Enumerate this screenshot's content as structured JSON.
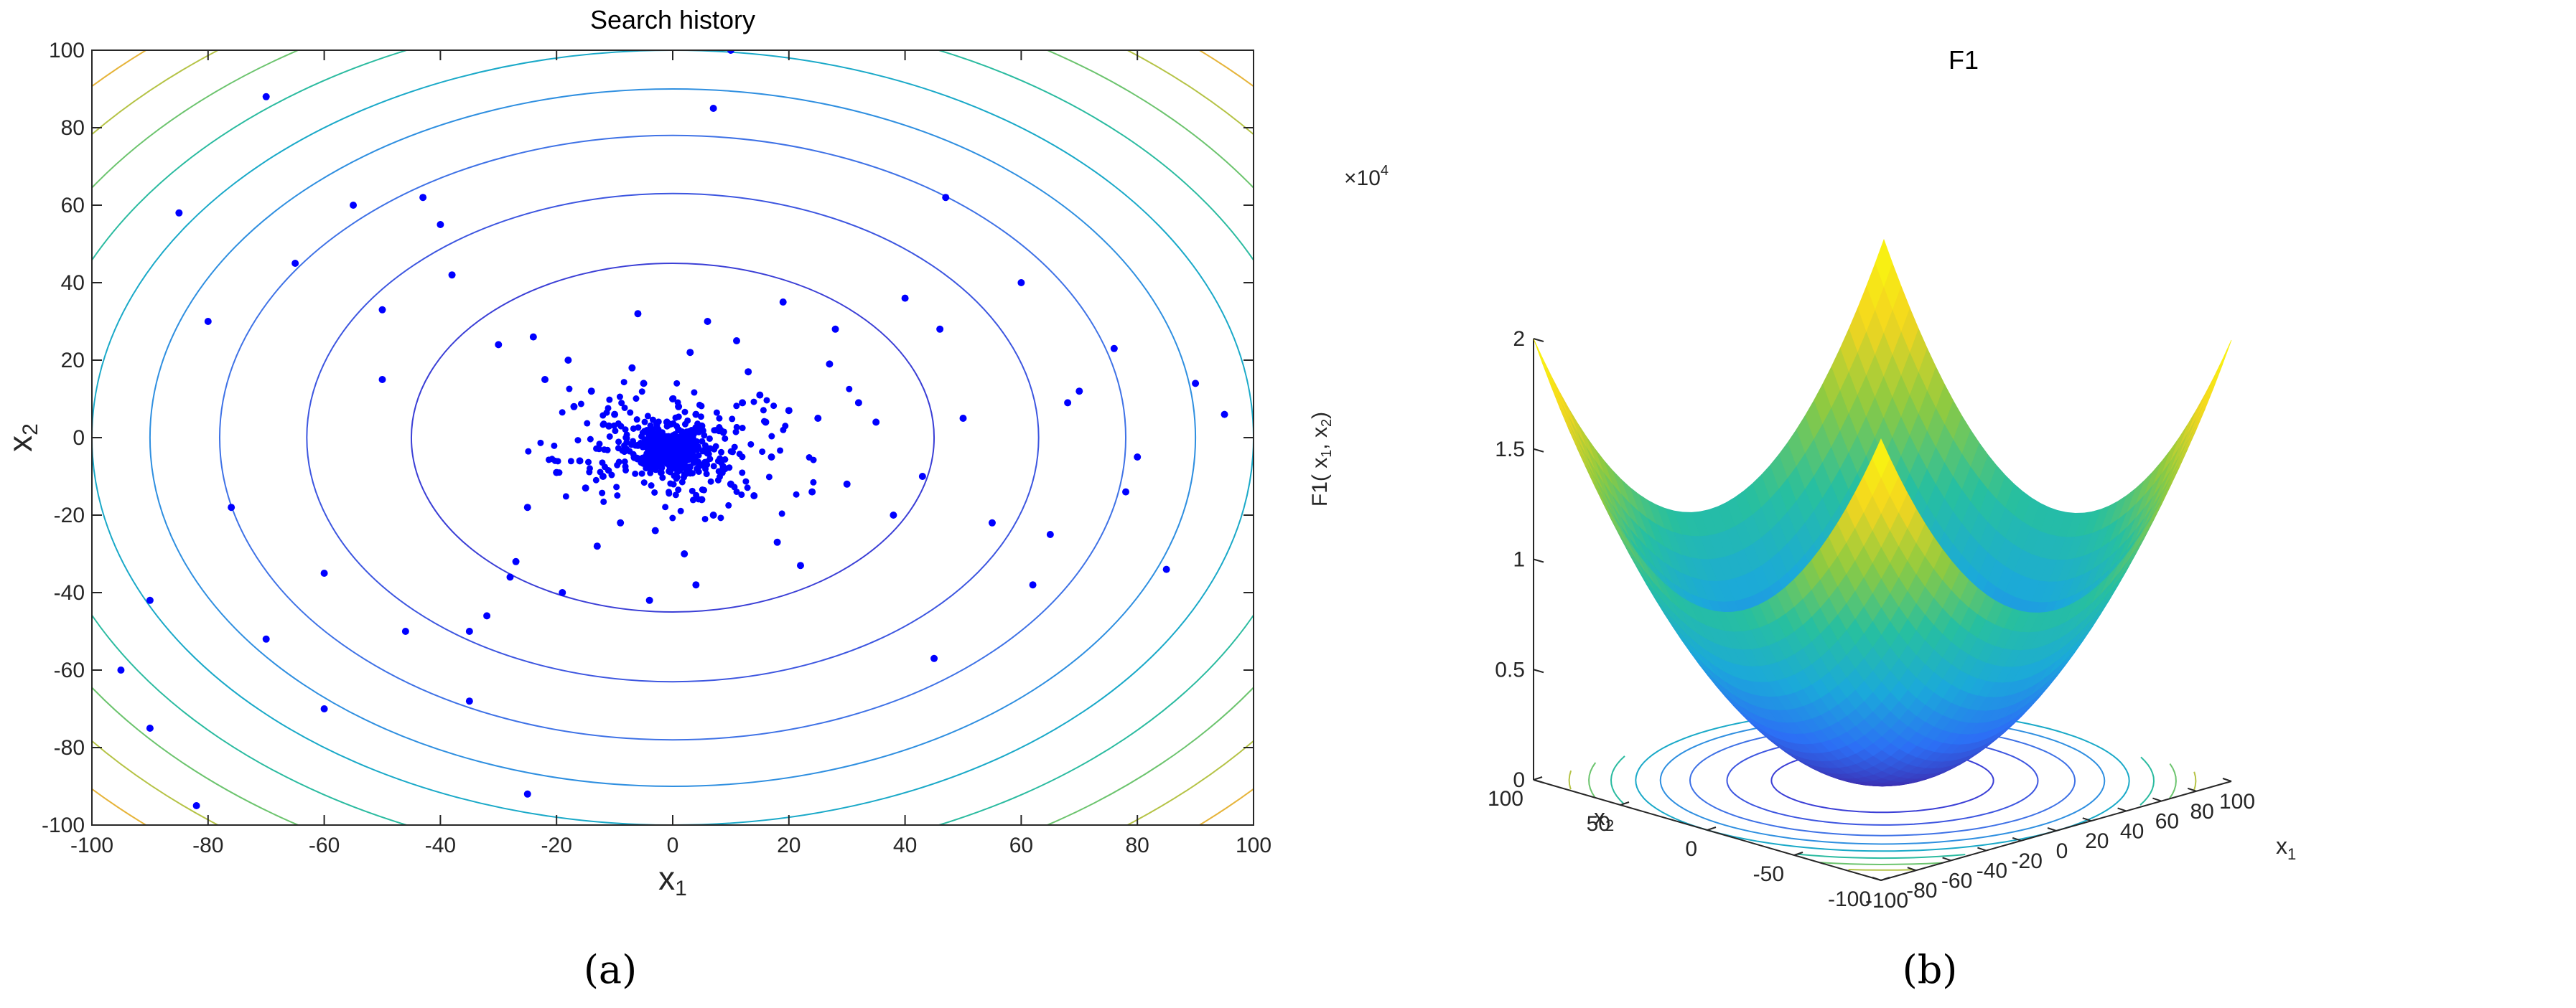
{
  "chart_data": [
    {
      "type": "scatter",
      "title": "Search history",
      "xlabel": "x",
      "xlabel_sub": "1",
      "ylabel": "x",
      "ylabel_sub": "2",
      "xlim": [
        -100,
        100
      ],
      "ylim": [
        -100,
        100
      ],
      "xticks": [
        -100,
        -80,
        -60,
        -40,
        -20,
        0,
        20,
        40,
        60,
        80,
        100
      ],
      "yticks": [
        -100,
        -80,
        -60,
        -40,
        -20,
        0,
        20,
        40,
        60,
        80,
        100
      ],
      "contour_function": "x1^2 + x2^2",
      "contour_levels_radius": [
        45,
        63,
        78,
        90,
        100,
        110,
        119,
        127,
        135
      ],
      "contour_colors": [
        "#3b3fd6",
        "#3d56e0",
        "#3f72e6",
        "#2f8fe0",
        "#1aa9c8",
        "#2bbba0",
        "#6cc46e",
        "#b5c346",
        "#e6b43a"
      ],
      "point_color": "#0000ff",
      "series": [
        {
          "name": "",
          "x": [
            -2,
            1,
            0,
            3,
            -4,
            2,
            -1,
            5,
            -6,
            4,
            -3,
            6,
            1,
            -2,
            0,
            8,
            -8,
            10,
            -10,
            12,
            -12,
            14,
            -14,
            16,
            -16,
            7,
            -7,
            3,
            -3,
            2,
            -5,
            5,
            9,
            -9,
            11,
            -11,
            15,
            -15,
            18,
            -18,
            20,
            -20,
            22,
            -22,
            25,
            -25,
            28,
            -28,
            30,
            -30,
            6,
            -6,
            4,
            -4,
            13,
            -13,
            17,
            -17,
            19,
            -19,
            24,
            -24,
            27,
            -27,
            32,
            -32,
            35,
            -35,
            38,
            -38,
            40,
            -40,
            43,
            -43,
            46,
            -46,
            50,
            -50,
            55,
            -55,
            60,
            -60,
            65,
            -65,
            70,
            -70,
            76,
            -76,
            80,
            -80,
            85,
            -85,
            90,
            -90,
            95,
            -95,
            -82,
            -90,
            47,
            78,
            68,
            -70,
            7,
            10,
            -25,
            -60,
            62,
            -50,
            45,
            -35
          ],
          "y": [
            0,
            2,
            -3,
            -1,
            1,
            -5,
            4,
            3,
            -2,
            6,
            -6,
            -4,
            8,
            -9,
            10,
            2,
            -3,
            -12,
            6,
            9,
            -10,
            -15,
            12,
            4,
            -6,
            -20,
            18,
            22,
            -24,
            -30,
            14,
            -16,
            -8,
            -22,
            25,
            3,
            11,
            -13,
            -27,
            20,
            7,
            -9,
            -33,
            15,
            5,
            -18,
            28,
            -36,
            -12,
            24,
            30,
            32,
            -38,
            -42,
            17,
            -28,
            -5,
            8,
            35,
            -40,
            -14,
            26,
            19,
            -32,
            9,
            -46,
            4,
            -50,
            -20,
            42,
            36,
            55,
            -10,
            62,
            28,
            -50,
            5,
            15,
            -22,
            60,
            40,
            -35,
            -25,
            45,
            12,
            -52,
            23,
            -18,
            -5,
            30,
            -34,
            58,
            14,
            -42,
            6,
            -60,
            -95,
            -75,
            62,
            -14,
            9,
            88,
            85,
            100,
            -92,
            -70,
            -38,
            33,
            -57,
            -68
          ]
        }
      ],
      "dense_cluster_center": [
        0,
        -3
      ]
    },
    {
      "type": "surface",
      "title": "F1",
      "xlabel": "x",
      "xlabel_sub": "1",
      "ylabel": "x",
      "ylabel_sub": "2",
      "zlabel": "F1( x",
      "zlabel_sub1": "1",
      "zlabel_mid": ", x",
      "zlabel_sub2": "2",
      "zlabel_end": ")",
      "zscale_label": "×10",
      "zscale_exp": "4",
      "xlim": [
        -100,
        100
      ],
      "ylim": [
        -100,
        100
      ],
      "zlim": [
        0,
        20000
      ],
      "x1ticks": [
        -100,
        -80,
        -60,
        -40,
        -20,
        0,
        20,
        40,
        60,
        80,
        100
      ],
      "x2ticks": [
        -100,
        -50,
        0,
        50,
        100
      ],
      "zticks": [
        "0",
        "0.5",
        "1",
        "1.5",
        "2"
      ],
      "function": "x1^2 + x2^2",
      "colormap": [
        "#3e26a8",
        "#2c6ff5",
        "#1ba9da",
        "#27bfa0",
        "#8cca42",
        "#f4d51f",
        "#f9fb0e"
      ]
    }
  ],
  "captions": [
    "(a)",
    "(b)"
  ]
}
